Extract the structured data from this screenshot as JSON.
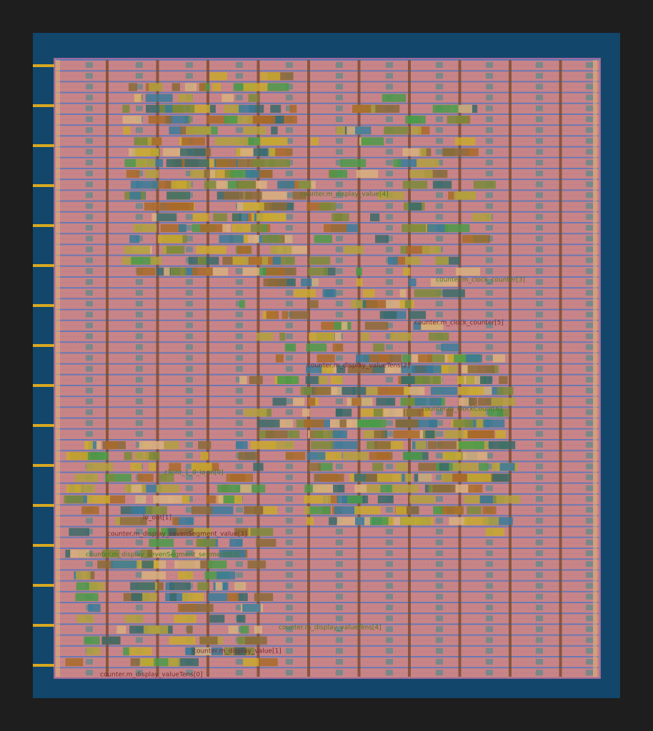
{
  "labels": [
    "counter.m_display_value[4]",
    "counter.m_display_sevenSegment_value[3]",
    "clkint_1_0_io_in[0]",
    "io_out[1]",
    "counter.m_display_sevenSegment_segments[0]",
    "counter.m_clock_counter[5]",
    "counter.m_display_valueTens[4]",
    "counter.m_display_valueTens[2]",
    "counter.m_clock_counter[3]",
    "counter.m_display_value[1]",
    "counter.m_clockCount[6]",
    "counter.m_display_valueTens[0]"
  ]
}
